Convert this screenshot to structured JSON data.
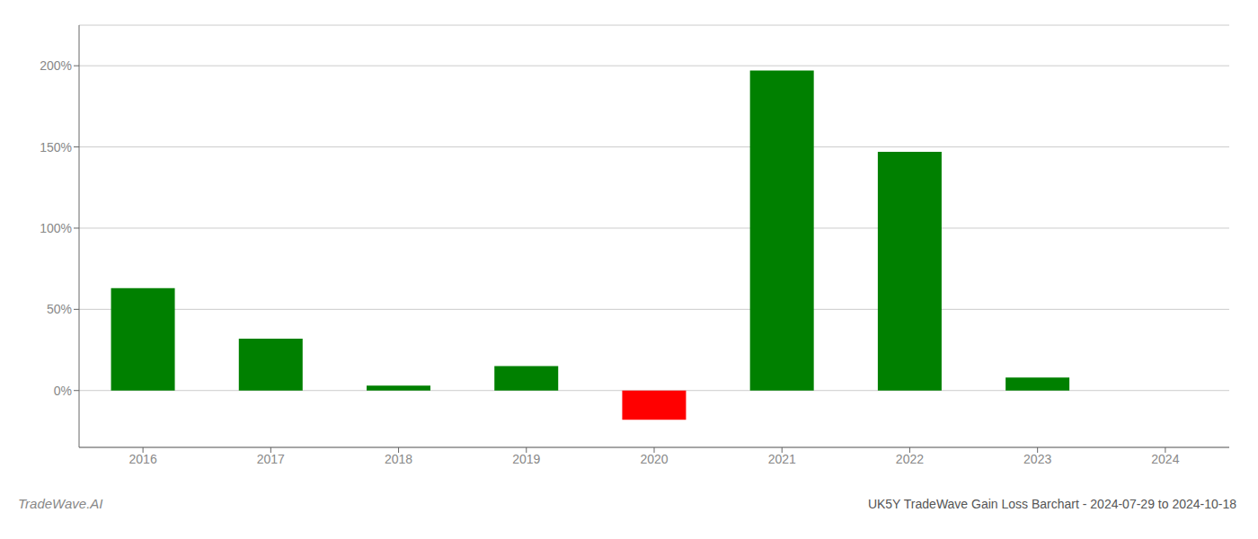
{
  "chart_data": {
    "type": "bar",
    "title": "UK5Y TradeWave Gain Loss Barchart - 2024-07-29 to 2024-10-18",
    "annotations": [
      "TradeWave.AI"
    ],
    "categories": [
      "2016",
      "2017",
      "2018",
      "2019",
      "2020",
      "2021",
      "2022",
      "2023",
      "2024"
    ],
    "values": [
      63.0,
      32.0,
      3.0,
      15.0,
      -18.0,
      197.0,
      147.0,
      8.0,
      0.0
    ],
    "colors": [
      "#008000",
      "#008000",
      "#008000",
      "#008000",
      "#ff0000",
      "#008000",
      "#008000",
      "#008000",
      "#008000"
    ],
    "ylim": [
      -35,
      225
    ],
    "yticks": [
      {
        "value": 0,
        "label": "0%"
      },
      {
        "value": 50,
        "label": "50%"
      },
      {
        "value": 100,
        "label": "100%"
      },
      {
        "value": 150,
        "label": "150%"
      },
      {
        "value": 200,
        "label": "200%"
      }
    ],
    "grid": true
  }
}
